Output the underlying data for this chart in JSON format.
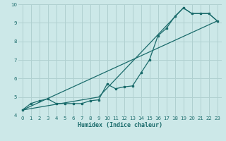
{
  "xlabel": "Humidex (Indice chaleur)",
  "bg_color": "#cce8e8",
  "line_color": "#1a6b6b",
  "grid_color": "#b0d0d0",
  "xlim": [
    -0.5,
    23.5
  ],
  "ylim": [
    4,
    10
  ],
  "xticks": [
    0,
    1,
    2,
    3,
    4,
    5,
    6,
    7,
    8,
    9,
    10,
    11,
    12,
    13,
    14,
    15,
    16,
    17,
    18,
    19,
    20,
    21,
    22,
    23
  ],
  "yticks": [
    4,
    5,
    6,
    7,
    8,
    9,
    10
  ],
  "line1_x": [
    0,
    1,
    2,
    3,
    4,
    5,
    6,
    7,
    8,
    9,
    10,
    11,
    12,
    13,
    14,
    15,
    16,
    17,
    18,
    19,
    20,
    21,
    22,
    23
  ],
  "line1_y": [
    4.3,
    4.65,
    4.8,
    4.9,
    4.65,
    4.65,
    4.65,
    4.65,
    4.8,
    4.85,
    5.7,
    5.45,
    5.55,
    5.6,
    6.3,
    7.0,
    8.3,
    8.7,
    9.35,
    9.8,
    9.5,
    9.5,
    9.5,
    9.1
  ],
  "line2_x": [
    0,
    23
  ],
  "line2_y": [
    4.3,
    9.1
  ],
  "line3_x": [
    0,
    9,
    19,
    20,
    21,
    22,
    23
  ],
  "line3_y": [
    4.3,
    5.0,
    9.8,
    9.5,
    9.5,
    9.5,
    9.1
  ]
}
